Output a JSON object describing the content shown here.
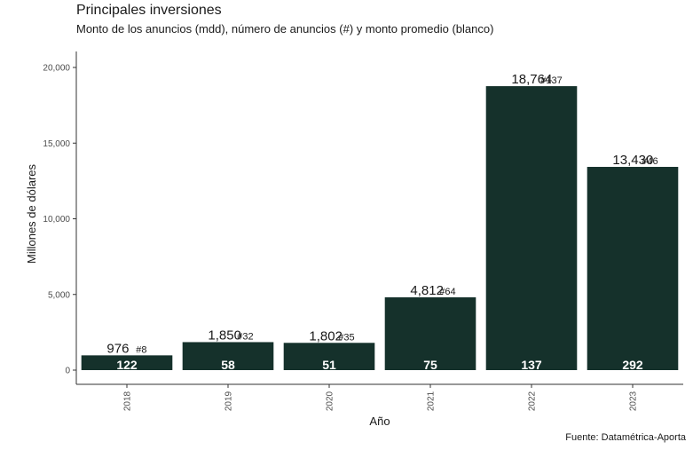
{
  "title": "Principales inversiones",
  "subtitle": "Monto de los anuncios (mdd), número de anuncios (#) y monto promedio (blanco)",
  "source": "Fuente: Datamétrica-Aporta",
  "colors": {
    "bar": "#15312b",
    "axis": "#333333",
    "text": "#1a1a1a"
  },
  "chart_data": {
    "type": "bar",
    "xlabel": "Año",
    "ylabel": "Millones de dólares",
    "ylim": [
      0,
      22000
    ],
    "yticks": [
      0,
      5000,
      10000,
      15000,
      20000
    ],
    "ytick_labels": [
      "0",
      "5,000",
      "10,000",
      "15,000",
      "20,000"
    ],
    "grid": false,
    "categories": [
      "2018",
      "2019",
      "2020",
      "2021",
      "2022",
      "2023"
    ],
    "values": [
      976,
      1850,
      1802,
      4812,
      18764,
      13430
    ],
    "value_labels": [
      "976",
      "1,850",
      "1,802",
      "4,812",
      "18,764",
      "13,430"
    ],
    "counts": [
      "#8",
      "#32",
      "#35",
      "#64",
      "#137",
      "#46"
    ],
    "averages": [
      "122",
      "58",
      "51",
      "75",
      "137",
      "292"
    ]
  }
}
